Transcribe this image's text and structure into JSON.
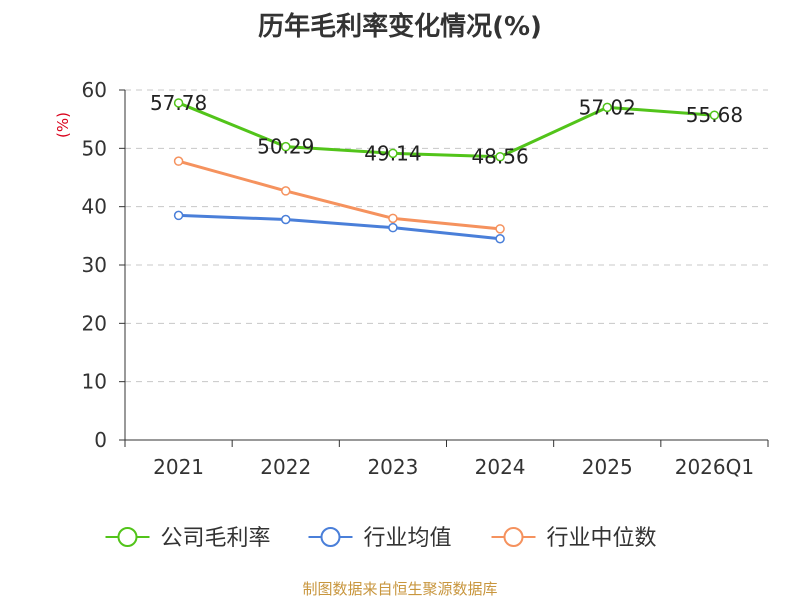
{
  "title": "历年毛利率变化情况(%)",
  "source": "制图数据来自恒生聚源数据库",
  "colors": {
    "series": [
      "#52c41a",
      "#4a7fd9",
      "#f5925e"
    ],
    "unit_label": "#d9001b",
    "source_text": "#c8963e"
  },
  "chart_data": {
    "type": "line",
    "categories": [
      "2021",
      "2022",
      "2023",
      "2024",
      "2025",
      "2026Q1"
    ],
    "ylabel": "(%)",
    "ylim": [
      0,
      60
    ],
    "yticks": [
      "0",
      "10",
      "20",
      "30",
      "40",
      "50",
      "60"
    ],
    "grid": true,
    "legend_position": "bottom",
    "series": [
      {
        "name": "公司毛利率",
        "values": [
          57.78,
          50.29,
          49.14,
          48.56,
          57.02,
          55.68
        ],
        "labels": [
          "57.78",
          "50.29",
          "49.14",
          "48.56",
          "57.02",
          "55.68"
        ]
      },
      {
        "name": "行业均值",
        "values": [
          38.5,
          37.8,
          36.4,
          34.5,
          null,
          null
        ]
      },
      {
        "name": "行业中位数",
        "values": [
          47.8,
          42.7,
          38.0,
          36.2,
          null,
          null
        ]
      }
    ]
  }
}
